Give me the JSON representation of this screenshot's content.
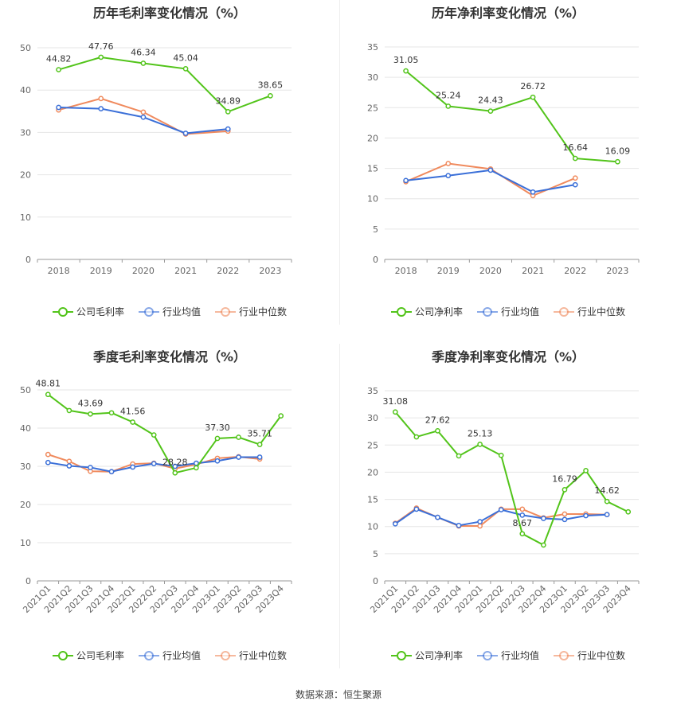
{
  "colors": {
    "company": "#52c41a",
    "avg": "#3a6fd8",
    "median": "#f08a5d"
  },
  "source_text": "数据来源：恒生聚源",
  "chart_data": [
    {
      "type": "line",
      "title": "历年毛利率变化情况（%）",
      "categories": [
        "2018",
        "2019",
        "2020",
        "2021",
        "2022",
        "2023"
      ],
      "ylim": [
        0,
        50
      ],
      "yticks": [
        0,
        10,
        20,
        30,
        40,
        50
      ],
      "grid": true,
      "legend_position": "bottom",
      "series": [
        {
          "name": "公司毛利率",
          "key": "company",
          "values": [
            44.82,
            47.76,
            46.34,
            45.04,
            34.89,
            38.65
          ],
          "show_labels": true
        },
        {
          "name": "行业均值",
          "key": "avg",
          "values": [
            35.9,
            35.6,
            33.6,
            29.8,
            30.8,
            null
          ]
        },
        {
          "name": "行业中位数",
          "key": "median",
          "values": [
            35.3,
            38.0,
            34.8,
            29.6,
            30.3,
            null
          ]
        }
      ],
      "labels": [
        "44.82",
        "47.76",
        "46.34",
        "45.04",
        "34.89",
        "38.65"
      ]
    },
    {
      "type": "line",
      "title": "历年净利率变化情况（%）",
      "categories": [
        "2018",
        "2019",
        "2020",
        "2021",
        "2022",
        "2023"
      ],
      "ylim": [
        0,
        35
      ],
      "yticks": [
        0,
        5,
        10,
        15,
        20,
        25,
        30,
        35
      ],
      "grid": true,
      "legend_position": "bottom",
      "series": [
        {
          "name": "公司净利率",
          "key": "company",
          "values": [
            31.05,
            25.24,
            24.43,
            26.72,
            16.64,
            16.09
          ],
          "show_labels": true
        },
        {
          "name": "行业均值",
          "key": "avg",
          "values": [
            13.0,
            13.8,
            14.7,
            11.1,
            12.3,
            null
          ]
        },
        {
          "name": "行业中位数",
          "key": "median",
          "values": [
            12.8,
            15.8,
            14.9,
            10.5,
            13.4,
            null
          ]
        }
      ],
      "labels": [
        "31.05",
        "25.24",
        "24.43",
        "26.72",
        "16.64",
        "16.09"
      ]
    },
    {
      "type": "line",
      "title": "季度毛利率变化情况（%）",
      "categories": [
        "2021Q1",
        "2021Q2",
        "2021Q3",
        "2021Q4",
        "2022Q1",
        "2022Q2",
        "2022Q3",
        "2022Q4",
        "2023Q1",
        "2023Q2",
        "2023Q3",
        "2023Q4"
      ],
      "ylim": [
        0,
        50
      ],
      "yticks": [
        0,
        10,
        20,
        30,
        40,
        50
      ],
      "grid": true,
      "rotate_x": true,
      "legend_position": "bottom",
      "series": [
        {
          "name": "公司毛利率",
          "key": "company",
          "values": [
            48.81,
            44.6,
            43.69,
            44.0,
            41.56,
            38.2,
            28.28,
            29.6,
            37.3,
            37.6,
            35.71,
            43.2
          ],
          "show_labels": true
        },
        {
          "name": "行业均值",
          "key": "avg",
          "values": [
            31.0,
            30.1,
            29.7,
            28.6,
            29.8,
            30.7,
            30.0,
            30.8,
            31.4,
            32.4,
            32.4,
            null
          ]
        },
        {
          "name": "行业中位数",
          "key": "median",
          "values": [
            33.1,
            31.3,
            28.7,
            28.6,
            30.6,
            30.8,
            29.4,
            30.5,
            32.1,
            32.5,
            31.9,
            null
          ]
        }
      ],
      "labels": [
        "48.81",
        "",
        "43.69",
        "",
        "41.56",
        "",
        "28.28",
        "",
        "37.30",
        "",
        "35.71",
        ""
      ]
    },
    {
      "type": "line",
      "title": "季度净利率变化情况（%）",
      "categories": [
        "2021Q1",
        "2021Q2",
        "2021Q3",
        "2021Q4",
        "2022Q1",
        "2022Q2",
        "2022Q3",
        "2022Q4",
        "2023Q1",
        "2023Q2",
        "2023Q3",
        "2023Q4"
      ],
      "ylim": [
        0,
        35
      ],
      "yticks": [
        0,
        5,
        10,
        15,
        20,
        25,
        30,
        35
      ],
      "grid": true,
      "rotate_x": true,
      "legend_position": "bottom",
      "series": [
        {
          "name": "公司净利率",
          "key": "company",
          "values": [
            31.08,
            26.5,
            27.62,
            23.0,
            25.13,
            23.1,
            8.67,
            6.6,
            16.79,
            20.3,
            14.62,
            12.7
          ],
          "show_labels": true
        },
        {
          "name": "行业均值",
          "key": "avg",
          "values": [
            10.5,
            13.2,
            11.7,
            10.2,
            10.9,
            13.1,
            12.1,
            11.5,
            11.3,
            12.0,
            12.2,
            null
          ]
        },
        {
          "name": "行业中位数",
          "key": "median",
          "values": [
            10.6,
            13.4,
            11.7,
            10.1,
            10.1,
            13.2,
            13.2,
            11.6,
            12.3,
            12.3,
            12.2,
            null
          ]
        }
      ],
      "labels": [
        "31.08",
        "",
        "27.62",
        "",
        "25.13",
        "",
        "8.67",
        "",
        "16.79",
        "",
        "14.62",
        ""
      ]
    }
  ]
}
